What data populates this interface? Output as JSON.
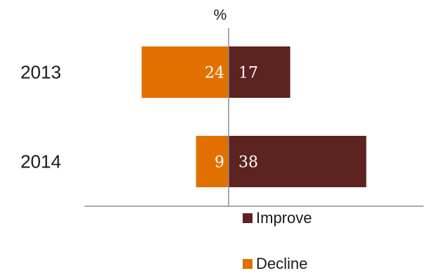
{
  "chart_data": {
    "type": "bar",
    "orientation": "horizontal",
    "diverging": true,
    "unit_label": "%",
    "categories": [
      "2013",
      "2014"
    ],
    "series": [
      {
        "name": "Improve",
        "values": [
          17,
          38
        ],
        "color": "#5c2320",
        "side": "right"
      },
      {
        "name": "Decline",
        "values": [
          24,
          9
        ],
        "color": "#e07000",
        "side": "left"
      }
    ],
    "grid": false,
    "legend_position": "bottom-right"
  }
}
